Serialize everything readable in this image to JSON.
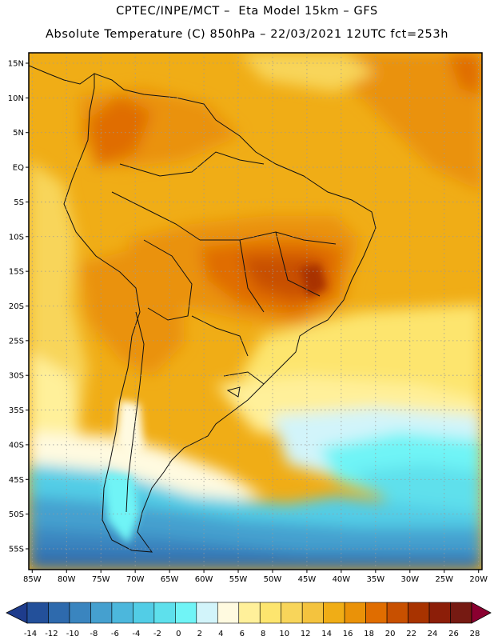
{
  "header": {
    "line1": "CPTEC/INPE/MCT –  Eta Model 15km – GFS",
    "line2": "Absolute Temperature (C) 850hPa – 22/03/2021 12UTC fct=253h"
  },
  "map": {
    "lat_labels": [
      "15N",
      "10N",
      "5N",
      "EQ",
      "5S",
      "10S",
      "15S",
      "20S",
      "25S",
      "30S",
      "35S",
      "40S",
      "45S",
      "50S",
      "55S"
    ],
    "lat_values": [
      15,
      10,
      5,
      0,
      -5,
      -10,
      -15,
      -20,
      -25,
      -30,
      -35,
      -40,
      -45,
      -50,
      -55
    ],
    "lon_labels": [
      "85W",
      "80W",
      "75W",
      "70W",
      "65W",
      "60W",
      "55W",
      "50W",
      "45W",
      "40W",
      "35W",
      "30W",
      "25W",
      "20W"
    ],
    "lon_values": [
      -85,
      -80,
      -75,
      -70,
      -65,
      -60,
      -55,
      -50,
      -45,
      -40,
      -35,
      -30,
      -25,
      -20
    ],
    "lon_range": [
      -85.5,
      -19.5
    ],
    "lat_range": [
      -58,
      16.5
    ]
  },
  "legend": {
    "labels": [
      "-14",
      "-12",
      "-10",
      "-8",
      "-6",
      "-4",
      "-2",
      "0",
      "2",
      "4",
      "6",
      "8",
      "10",
      "12",
      "14",
      "16",
      "18",
      "20",
      "22",
      "24",
      "26",
      "28"
    ],
    "colors": [
      "#1e3c8c",
      "#23509a",
      "#2e6aad",
      "#3a85bf",
      "#45a0cf",
      "#4cb7dc",
      "#52cde6",
      "#5ee0ec",
      "#70f4f6",
      "#d2f4fa",
      "#fffae0",
      "#fff09a",
      "#fde56e",
      "#f8d55a",
      "#f4c33e",
      "#f0ad16",
      "#ea9208",
      "#e06d00",
      "#c85000",
      "#a83300",
      "#8c1e08",
      "#761a12",
      "#8a0030"
    ]
  },
  "colors": {
    "frame": "#000000",
    "grid": "#9a9a9a",
    "land_line": "#111111"
  }
}
